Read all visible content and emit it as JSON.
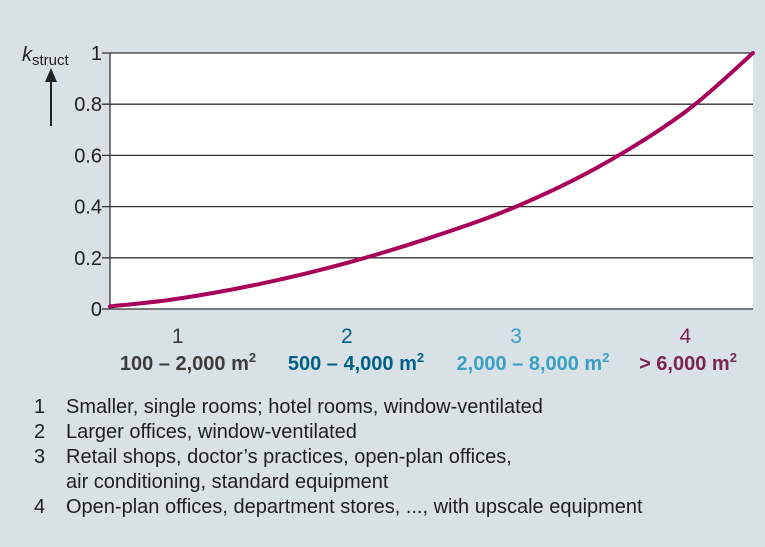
{
  "chart_data": {
    "type": "line",
    "y_axis": {
      "label_main": "k",
      "label_sub": "struct",
      "ticks": [
        0,
        0.2,
        0.4,
        0.6,
        0.8,
        1
      ],
      "tick_labels": [
        "0",
        "0.2",
        "0.4",
        "0.6",
        "0.8",
        "1"
      ],
      "ylim": [
        0,
        1
      ]
    },
    "x_axis": {
      "xlim": [
        0.6,
        4.4
      ],
      "category_numbers": [
        "1",
        "2",
        "3",
        "4"
      ],
      "category_positions": [
        1,
        2,
        3,
        4
      ],
      "range_labels": [
        "100 – 2,000 m",
        "500 – 4,000 m",
        "2,000 – 8,000 m",
        "> 6,000 m"
      ],
      "range_superscript": "2",
      "range_positions": [
        1,
        2,
        3,
        4
      ]
    },
    "series": [
      {
        "color": "#a8005a",
        "x": [
          0.6,
          1.0,
          1.5,
          2.0,
          2.5,
          3.0,
          3.5,
          4.0,
          4.4
        ],
        "y": [
          0.01,
          0.04,
          0.1,
          0.18,
          0.28,
          0.4,
          0.56,
          0.77,
          1.0
        ]
      }
    ],
    "grid": true,
    "colors": {
      "plot_bg": "#ffffff",
      "gridline": "#333333",
      "cat1": "#3c3c3c",
      "cat2": "#005f87",
      "cat3": "#3a9fc5",
      "cat4": "#7a2550"
    }
  },
  "legend": [
    {
      "num": "1",
      "text": "Smaller, single rooms; hotel rooms, window-ventilated"
    },
    {
      "num": "2",
      "text": "Larger offices, window-ventilated"
    },
    {
      "num": "3",
      "text": "Retail shops, doctor’s practices, open-plan offices,\nair conditioning, standard equipment"
    },
    {
      "num": "4",
      "text": "Open-plan offices, department stores, ..., with upscale equipment"
    }
  ]
}
